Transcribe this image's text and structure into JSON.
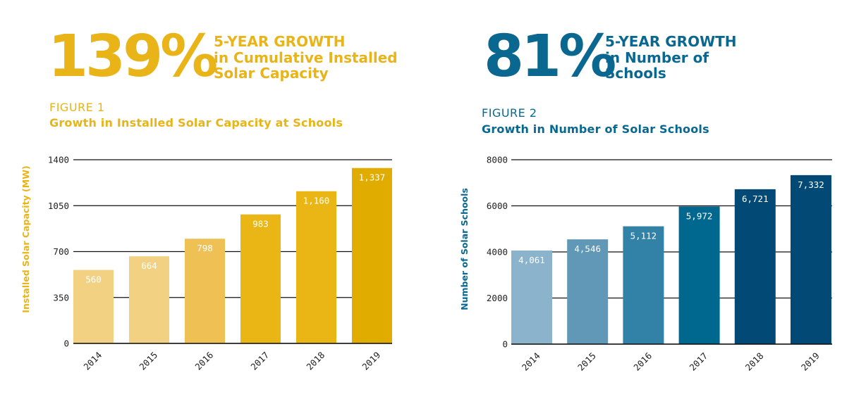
{
  "left_panel": {
    "stat_value": "139%",
    "headline_lines": [
      "5-YEAR GROWTH",
      "in Cumulative Installed",
      "Solar Capacity"
    ],
    "figure_label": "FIGURE 1",
    "figure_title": "Growth in Installed Solar Capacity at Schools",
    "accent_color": "#e8b418"
  },
  "right_panel": {
    "stat_value": "81%",
    "headline_lines": [
      "5-YEAR GROWTH",
      "in Number of",
      "Schools"
    ],
    "figure_label": "FIGURE 2",
    "figure_title": "Growth in Number of Solar Schools",
    "accent_color": "#0a6890"
  },
  "chart_data": [
    {
      "type": "bar",
      "title": "Growth in Installed Solar Capacity at Schools",
      "xlabel": "",
      "ylabel": "Installed Solar Capacity (MW)",
      "categories": [
        "2014",
        "2015",
        "2016",
        "2017",
        "2018",
        "2019"
      ],
      "values": [
        560,
        664,
        798,
        983,
        1160,
        1337
      ],
      "value_labels": [
        "560",
        "664",
        "798",
        "983",
        "1,160",
        "1,337"
      ],
      "yticks": [
        0,
        350,
        700,
        1050,
        1400
      ],
      "ylim": [
        0,
        1400
      ],
      "grid": true,
      "legend": "none",
      "bar_colors": [
        "#f2d183",
        "#f2d183",
        "#efc155",
        "#e9b616",
        "#e9b616",
        "#e0ac00"
      ],
      "ylabel_color": "#e8b418"
    },
    {
      "type": "bar",
      "title": "Growth in Number of Solar Schools",
      "xlabel": "",
      "ylabel": "Number of Solar Schools",
      "categories": [
        "2014",
        "2015",
        "2016",
        "2017",
        "2018",
        "2019"
      ],
      "values": [
        4061,
        4546,
        5112,
        5972,
        6721,
        7332
      ],
      "value_labels": [
        "4,061",
        "4,546",
        "5,112",
        "5,972",
        "6,721",
        "7,332"
      ],
      "yticks": [
        0,
        2000,
        4000,
        6000,
        8000
      ],
      "ylim": [
        0,
        8000
      ],
      "grid": true,
      "legend": "none",
      "bar_colors": [
        "#8bb4cc",
        "#6198b8",
        "#3281a6",
        "#00678f",
        "#024a75",
        "#024a75"
      ],
      "ylabel_color": "#0a6890"
    }
  ]
}
